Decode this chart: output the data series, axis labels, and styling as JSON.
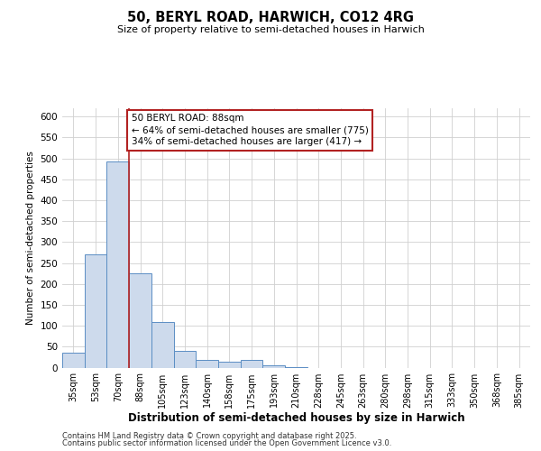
{
  "title": "50, BERYL ROAD, HARWICH, CO12 4RG",
  "subtitle": "Size of property relative to semi-detached houses in Harwich",
  "xlabel": "Distribution of semi-detached houses by size in Harwich",
  "ylabel": "Number of semi-detached properties",
  "bar_labels": [
    "35sqm",
    "53sqm",
    "70sqm",
    "88sqm",
    "105sqm",
    "123sqm",
    "140sqm",
    "158sqm",
    "175sqm",
    "193sqm",
    "210sqm",
    "228sqm",
    "245sqm",
    "263sqm",
    "280sqm",
    "298sqm",
    "315sqm",
    "333sqm",
    "350sqm",
    "368sqm",
    "385sqm"
  ],
  "bar_values": [
    35,
    270,
    493,
    225,
    108,
    40,
    18,
    15,
    18,
    5,
    1,
    0,
    0,
    0,
    0,
    0,
    0,
    0,
    0,
    0,
    0
  ],
  "property_line_index": 3,
  "annotation_title": "50 BERYL ROAD: 88sqm",
  "annotation_line1": "← 64% of semi-detached houses are smaller (775)",
  "annotation_line2": "34% of semi-detached houses are larger (417) →",
  "bar_color": "#cddaec",
  "bar_edge_color": "#5b8ec4",
  "line_color": "#b22222",
  "annotation_box_edge": "#b22222",
  "grid_color": "#d0d0d0",
  "background_color": "#ffffff",
  "ylim": [
    0,
    620
  ],
  "yticks": [
    0,
    50,
    100,
    150,
    200,
    250,
    300,
    350,
    400,
    450,
    500,
    550,
    600
  ],
  "footer1": "Contains HM Land Registry data © Crown copyright and database right 2025.",
  "footer2": "Contains public sector information licensed under the Open Government Licence v3.0."
}
